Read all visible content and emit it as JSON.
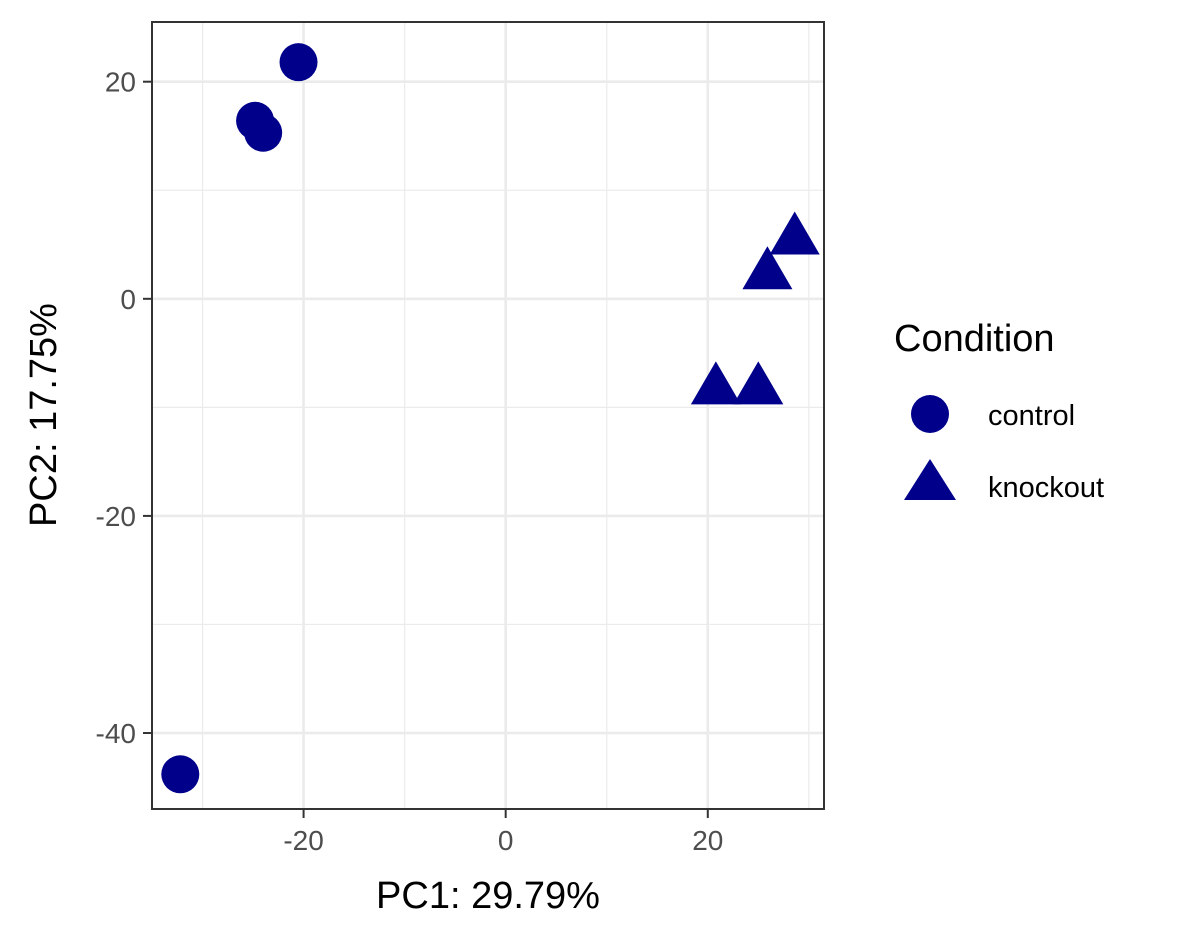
{
  "chart_data": {
    "type": "scatter",
    "title": "",
    "xlabel": "PC1: 29.79%",
    "ylabel": "PC2: 17.75%",
    "xlim": [
      -35,
      31.5
    ],
    "ylim": [
      -47,
      25.5
    ],
    "x_ticks": [
      -20,
      0,
      20
    ],
    "x_tick_labels": [
      "-20",
      "0",
      "20"
    ],
    "y_ticks": [
      -40,
      -20,
      0,
      20
    ],
    "y_tick_labels": [
      "-40",
      "-20",
      "0",
      "20"
    ],
    "grid": true,
    "legend": {
      "title": "Condition",
      "placement": "right",
      "entries": [
        {
          "label": "control",
          "shape": "circle"
        },
        {
          "label": "knockout",
          "shape": "triangle"
        }
      ]
    },
    "point_color": "#00008b",
    "series": [
      {
        "name": "control",
        "shape": "circle",
        "points": [
          {
            "x": -20.5,
            "y": 21.8
          },
          {
            "x": -24.8,
            "y": 16.4
          },
          {
            "x": -24.0,
            "y": 15.3
          },
          {
            "x": -32.2,
            "y": -43.8
          }
        ]
      },
      {
        "name": "knockout",
        "shape": "triangle",
        "points": [
          {
            "x": 28.6,
            "y": 5.4
          },
          {
            "x": 25.9,
            "y": 2.2
          },
          {
            "x": 20.8,
            "y": -8.4
          },
          {
            "x": 25.0,
            "y": -8.4
          }
        ]
      }
    ]
  }
}
